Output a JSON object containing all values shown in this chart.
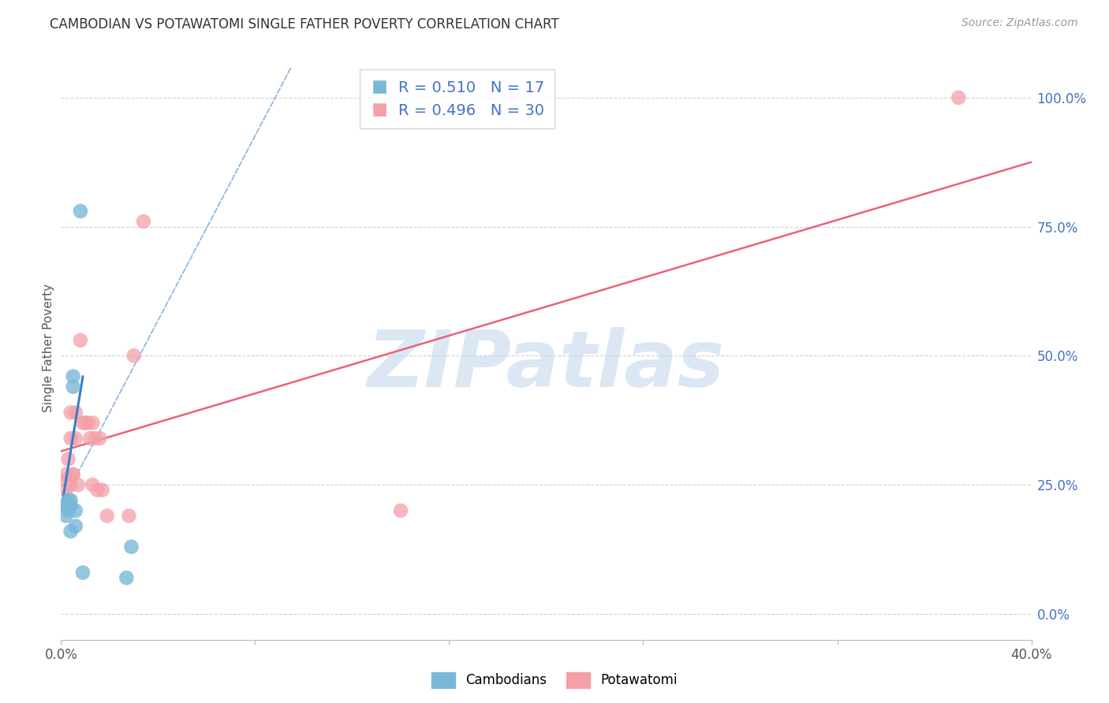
{
  "title": "CAMBODIAN VS POTAWATOMI SINGLE FATHER POVERTY CORRELATION CHART",
  "source": "Source: ZipAtlas.com",
  "ylabel": "Single Father Poverty",
  "xlim": [
    0.0,
    0.4
  ],
  "ylim": [
    -0.05,
    1.08
  ],
  "yticks": [
    0.0,
    0.25,
    0.5,
    0.75,
    1.0
  ],
  "ytick_labels": [
    "0.0%",
    "25.0%",
    "50.0%",
    "75.0%",
    "100.0%"
  ],
  "xticks": [
    0.0,
    0.08,
    0.16,
    0.24,
    0.32,
    0.4
  ],
  "xtick_labels": [
    "0.0%",
    "",
    "",
    "",
    "",
    "40.0%"
  ],
  "cambodian_color": "#7ab8d9",
  "potawatomi_color": "#f4a0a8",
  "cambodian_line_color": "#3a7dc9",
  "potawatomi_line_color": "#e8637a",
  "grid_color": "#d0d0d0",
  "background_color": "#ffffff",
  "watermark": "ZIPatlas",
  "watermark_color": "#c5d8ee",
  "title_color": "#333333",
  "source_color": "#999999",
  "axis_label_color": "#555555",
  "right_tick_color": "#4472c4",
  "bottom_tick_color": "#555555",
  "cambodian_x": [
    0.002,
    0.002,
    0.003,
    0.003,
    0.003,
    0.003,
    0.004,
    0.004,
    0.004,
    0.005,
    0.005,
    0.006,
    0.006,
    0.008,
    0.009,
    0.027,
    0.029
  ],
  "cambodian_y": [
    0.19,
    0.21,
    0.2,
    0.21,
    0.21,
    0.22,
    0.21,
    0.22,
    0.16,
    0.44,
    0.46,
    0.2,
    0.17,
    0.78,
    0.08,
    0.07,
    0.13
  ],
  "potawatomi_x": [
    0.002,
    0.002,
    0.002,
    0.003,
    0.003,
    0.004,
    0.004,
    0.004,
    0.005,
    0.005,
    0.006,
    0.006,
    0.007,
    0.008,
    0.009,
    0.01,
    0.011,
    0.012,
    0.013,
    0.013,
    0.014,
    0.015,
    0.016,
    0.017,
    0.019,
    0.028,
    0.03,
    0.034,
    0.14,
    0.37
  ],
  "potawatomi_y": [
    0.26,
    0.27,
    0.24,
    0.21,
    0.3,
    0.34,
    0.39,
    0.25,
    0.27,
    0.27,
    0.39,
    0.34,
    0.25,
    0.53,
    0.37,
    0.37,
    0.37,
    0.34,
    0.25,
    0.37,
    0.34,
    0.24,
    0.34,
    0.24,
    0.19,
    0.19,
    0.5,
    0.76,
    0.2,
    1.0
  ],
  "cambodian_solid_line": {
    "x0": 0.0,
    "y0": 0.2,
    "x1": 0.009,
    "y1": 0.46
  },
  "cambodian_dashed_line": {
    "x0": 0.001,
    "y0": 0.22,
    "x1": 0.095,
    "y1": 1.06
  },
  "potawatomi_line": {
    "x0": 0.0,
    "y0": 0.315,
    "x1": 0.4,
    "y1": 0.875
  },
  "legend_r1": "R = 0.510",
  "legend_n1": "N = 17",
  "legend_r2": "R = 0.496",
  "legend_n2": "N = 30"
}
